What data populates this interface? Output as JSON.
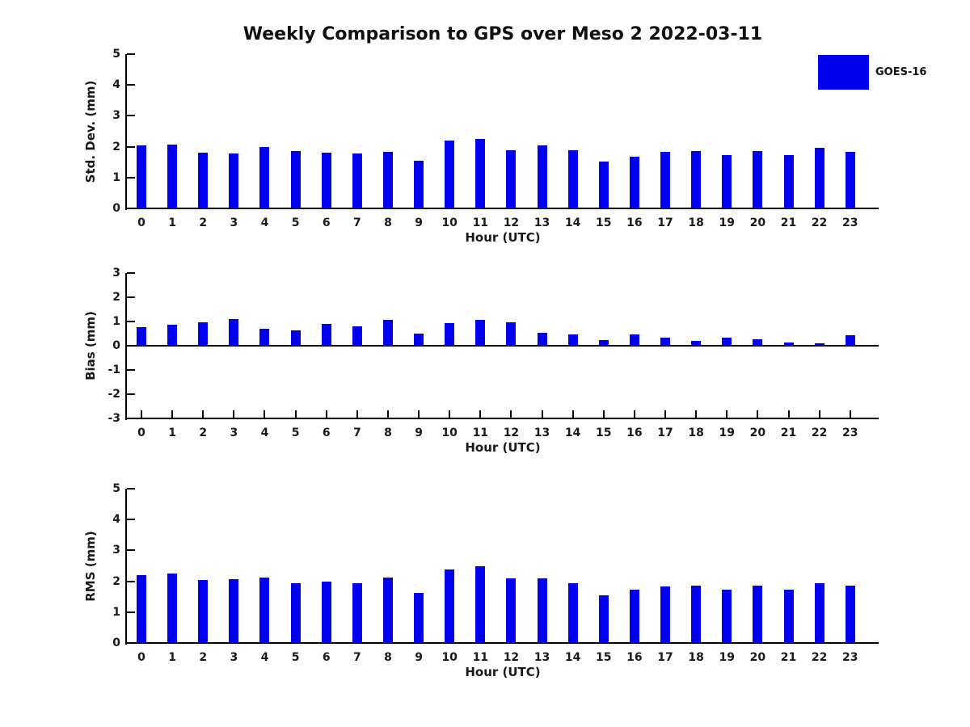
{
  "title": "Weekly Comparison to GPS over Meso 2 2022-03-11",
  "legend": {
    "label": "GOES-16",
    "swatch_icon": "blue-square",
    "color": "#0000ee",
    "position": "top-right-outside"
  },
  "colors": {
    "bar": "#0000ee",
    "axis": "#000000",
    "background": "#ffffff"
  },
  "chart_data": [
    {
      "type": "bar",
      "title": "",
      "xlabel": "Hour (UTC)",
      "ylabel": "Std. Dev. (mm)",
      "categories": [
        "0",
        "1",
        "2",
        "3",
        "4",
        "5",
        "6",
        "7",
        "8",
        "9",
        "10",
        "11",
        "12",
        "13",
        "14",
        "15",
        "16",
        "17",
        "18",
        "19",
        "20",
        "21",
        "22",
        "23"
      ],
      "series": [
        {
          "name": "GOES-16",
          "values": [
            2.03,
            2.07,
            1.8,
            1.78,
            1.98,
            1.86,
            1.8,
            1.78,
            1.84,
            1.54,
            2.21,
            2.25,
            1.88,
            2.05,
            1.89,
            1.53,
            1.67,
            1.83,
            1.85,
            1.72,
            1.85,
            1.72,
            1.96,
            1.84
          ]
        }
      ],
      "ylim": [
        0,
        5
      ],
      "yticks": [
        0,
        1,
        2,
        3,
        4,
        5
      ],
      "grid": false,
      "tick_direction": "in"
    },
    {
      "type": "bar",
      "title": "",
      "xlabel": "Hour (UTC)",
      "ylabel": "Bias (mm)",
      "categories": [
        "0",
        "1",
        "2",
        "3",
        "4",
        "5",
        "6",
        "7",
        "8",
        "9",
        "10",
        "11",
        "12",
        "13",
        "14",
        "15",
        "16",
        "17",
        "18",
        "19",
        "20",
        "21",
        "22",
        "23"
      ],
      "series": [
        {
          "name": "GOES-16",
          "values": [
            0.78,
            0.87,
            0.96,
            1.1,
            0.7,
            0.63,
            0.9,
            0.8,
            1.07,
            0.5,
            0.95,
            1.07,
            0.98,
            0.54,
            0.48,
            0.23,
            0.48,
            0.32,
            0.2,
            0.35,
            0.26,
            0.15,
            0.1,
            0.42
          ]
        }
      ],
      "ylim": [
        -3,
        3
      ],
      "yticks": [
        -3,
        -2,
        -1,
        0,
        1,
        2,
        3
      ],
      "grid": false,
      "tick_direction": "in",
      "zero_line": true
    },
    {
      "type": "bar",
      "title": "",
      "xlabel": "Hour (UTC)",
      "ylabel": "RMS (mm)",
      "categories": [
        "0",
        "1",
        "2",
        "3",
        "4",
        "5",
        "6",
        "7",
        "8",
        "9",
        "10",
        "11",
        "12",
        "13",
        "14",
        "15",
        "16",
        "17",
        "18",
        "19",
        "20",
        "21",
        "22",
        "23"
      ],
      "series": [
        {
          "name": "GOES-16",
          "values": [
            2.19,
            2.24,
            2.03,
            2.08,
            2.11,
            1.95,
            2.0,
            1.95,
            2.13,
            1.61,
            2.37,
            2.5,
            2.1,
            2.09,
            1.95,
            1.55,
            1.74,
            1.84,
            1.86,
            1.73,
            1.87,
            1.73,
            1.95,
            1.86
          ]
        }
      ],
      "ylim": [
        0,
        5
      ],
      "yticks": [
        0,
        1,
        2,
        3,
        4,
        5
      ],
      "grid": false,
      "tick_direction": "in"
    }
  ]
}
